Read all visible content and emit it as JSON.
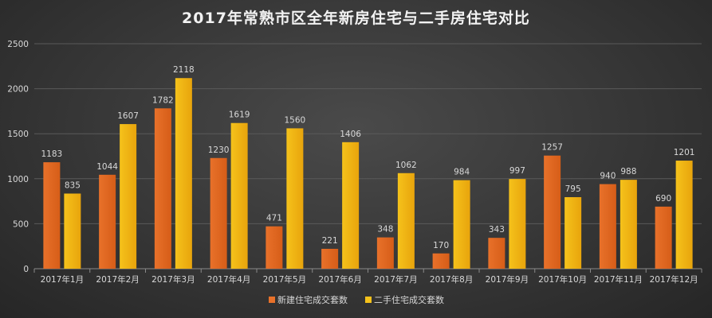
{
  "chart_data": {
    "type": "bar",
    "title": "2017年常熟市区全年新房住宅与二手房住宅对比",
    "categories": [
      "2017年1月",
      "2017年2月",
      "2017年3月",
      "2017年4月",
      "2017年5月",
      "2017年6月",
      "2017年7月",
      "2017年8月",
      "2017年9月",
      "2017年10月",
      "2017年11月",
      "2017年12月"
    ],
    "series": [
      {
        "name": "新建住宅成交套数",
        "color": "#e8712a",
        "values": [
          1183,
          1044,
          1782,
          1230,
          471,
          221,
          348,
          170,
          343,
          1257,
          940,
          690
        ]
      },
      {
        "name": "二手住宅成交套数",
        "color": "#f5c21b",
        "values": [
          835,
          1607,
          2118,
          1619,
          1560,
          1406,
          1062,
          984,
          997,
          795,
          988,
          1201
        ]
      }
    ],
    "ylim": [
      0,
      2500
    ],
    "yticks": [
      0,
      500,
      1000,
      1500,
      2000,
      2500
    ],
    "xlabel": "",
    "ylabel": "",
    "grid": true,
    "legend": "bottom"
  }
}
